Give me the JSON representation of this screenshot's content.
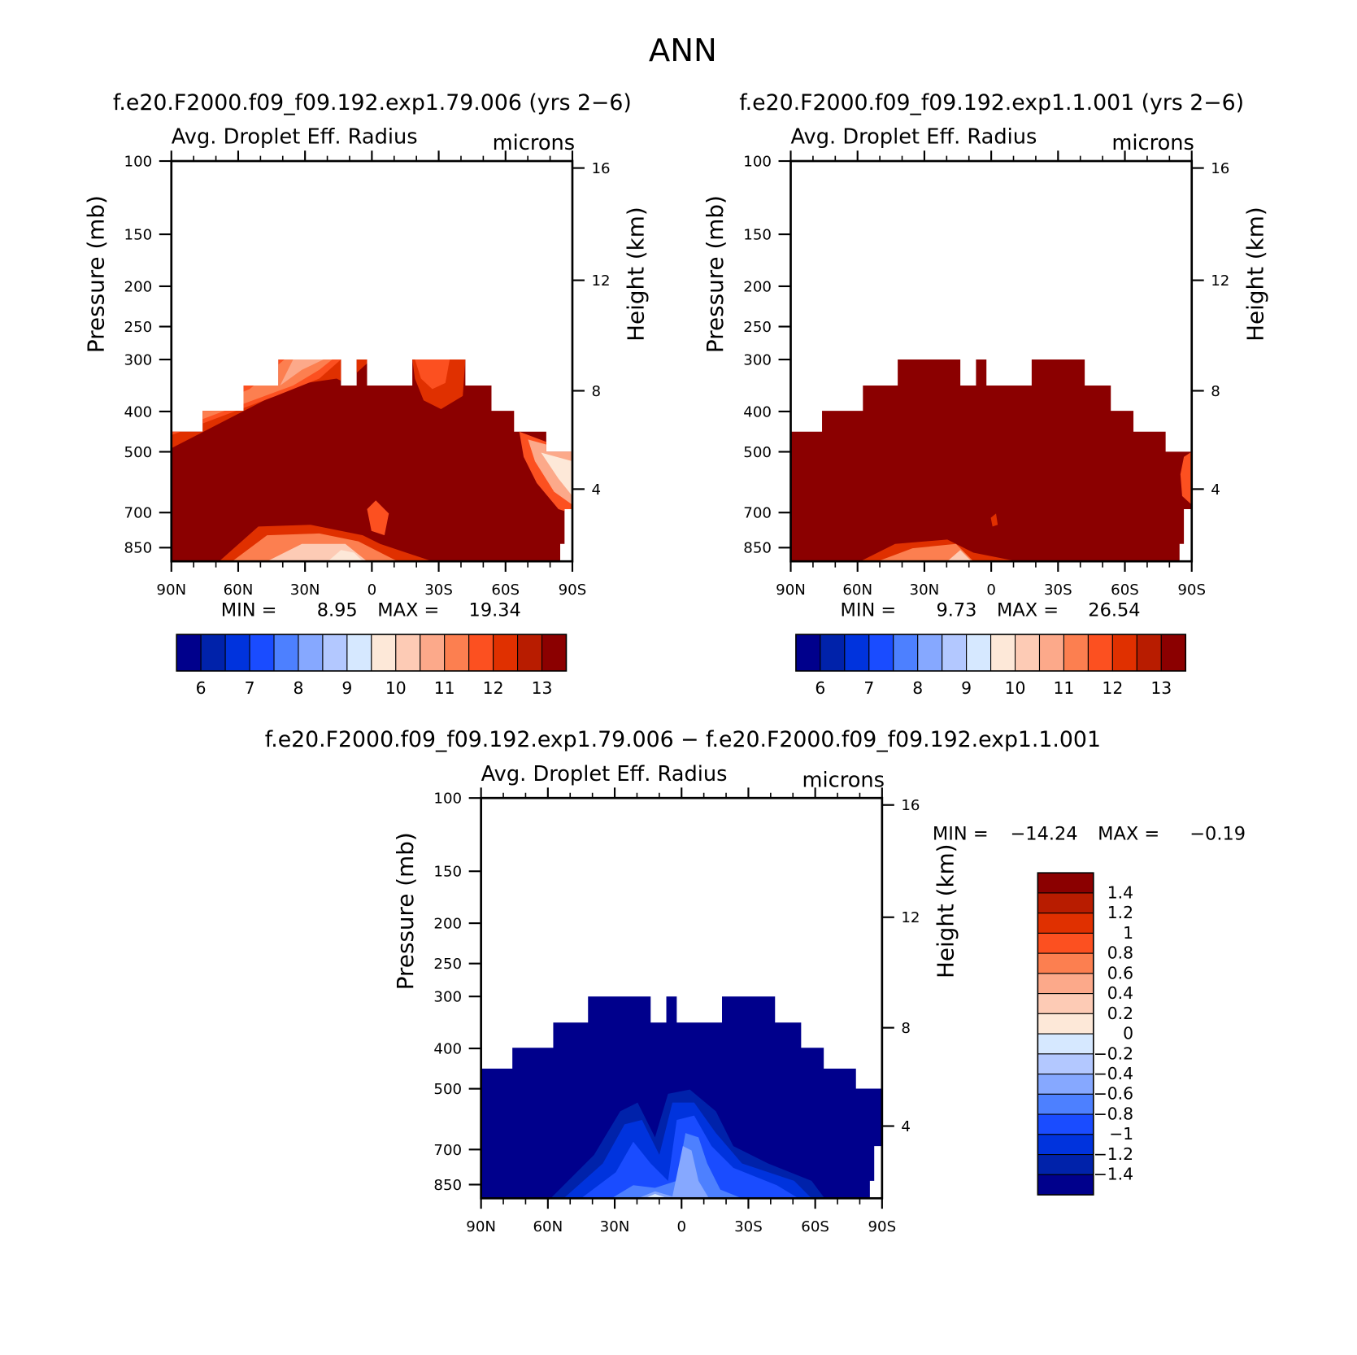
{
  "chart_data": {
    "type": "heatmap",
    "title": "ANN",
    "yaxis": {
      "label": "Pressure (mb)",
      "ticks": [
        100,
        150,
        200,
        250,
        300,
        400,
        500,
        700,
        850
      ],
      "range": [
        100,
        917
      ]
    },
    "y2axis": {
      "label": "Height (km)",
      "ticks": [
        16,
        12,
        8,
        4
      ]
    },
    "xaxis": {
      "ticks": [
        {
          "lat": 90,
          "label": "90N"
        },
        {
          "lat": 60,
          "label": "60N"
        },
        {
          "lat": 30,
          "label": "30N"
        },
        {
          "lat": 0,
          "label": "0"
        },
        {
          "lat": -30,
          "label": "30S"
        },
        {
          "lat": -60,
          "label": "60S"
        },
        {
          "lat": -90,
          "label": "90S"
        }
      ],
      "range": [
        90,
        -90
      ]
    },
    "panels": [
      {
        "id": "case1",
        "title": "f.e20.F2000.f09_f09.192.exp1.79.006 (yrs 2−6)",
        "variable": "Avg. Droplet Eff. Radius",
        "units": "microns",
        "min_label": "MIN =",
        "min": "8.95",
        "max_label": "MAX =",
        "max": "19.34"
      },
      {
        "id": "case2",
        "title": "f.e20.F2000.f09_f09.192.exp1.1.001 (yrs 2−6)",
        "variable": "Avg. Droplet Eff. Radius",
        "units": "microns",
        "min_label": "MIN =",
        "min": "9.73",
        "max_label": "MAX =",
        "max": "26.54"
      },
      {
        "id": "diff",
        "title": "f.e20.F2000.f09_f09.192.exp1.79.006 − f.e20.F2000.f09_f09.192.exp1.1.001",
        "variable": "Avg. Droplet Eff. Radius",
        "units": "microns",
        "min_label": "MIN =",
        "min": "−14.24",
        "max_label": "MAX =",
        "max": "−0.19"
      }
    ],
    "colorbar_main": {
      "labels": [
        "6",
        "7",
        "8",
        "9",
        "10",
        "11",
        "12",
        "13"
      ],
      "colors": [
        "#00008c",
        "#0022aa",
        "#0033dd",
        "#1a4cff",
        "#4d80ff",
        "#86a8ff",
        "#b3c8ff",
        "#d6e8ff",
        "#fde8d8",
        "#fdcbb5",
        "#fca98a",
        "#fc7f50",
        "#fc5020",
        "#e03000",
        "#b81c00",
        "#8b0000"
      ]
    },
    "colorbar_diff": {
      "labels": [
        "1.4",
        "1.2",
        "1",
        "0.8",
        "0.6",
        "0.4",
        "0.2",
        "0",
        "−0.2",
        "−0.4",
        "−0.6",
        "−0.8",
        "−1",
        "−1.2",
        "−1.4"
      ],
      "colors": [
        "#8b0000",
        "#b81c00",
        "#e03000",
        "#fc5020",
        "#fc7f50",
        "#fca98a",
        "#fdcbb5",
        "#fde8d8",
        "#d6e8ff",
        "#b3c8ff",
        "#86a8ff",
        "#4d80ff",
        "#1a4cff",
        "#0033dd",
        "#0022aa",
        "#00008c"
      ]
    }
  }
}
